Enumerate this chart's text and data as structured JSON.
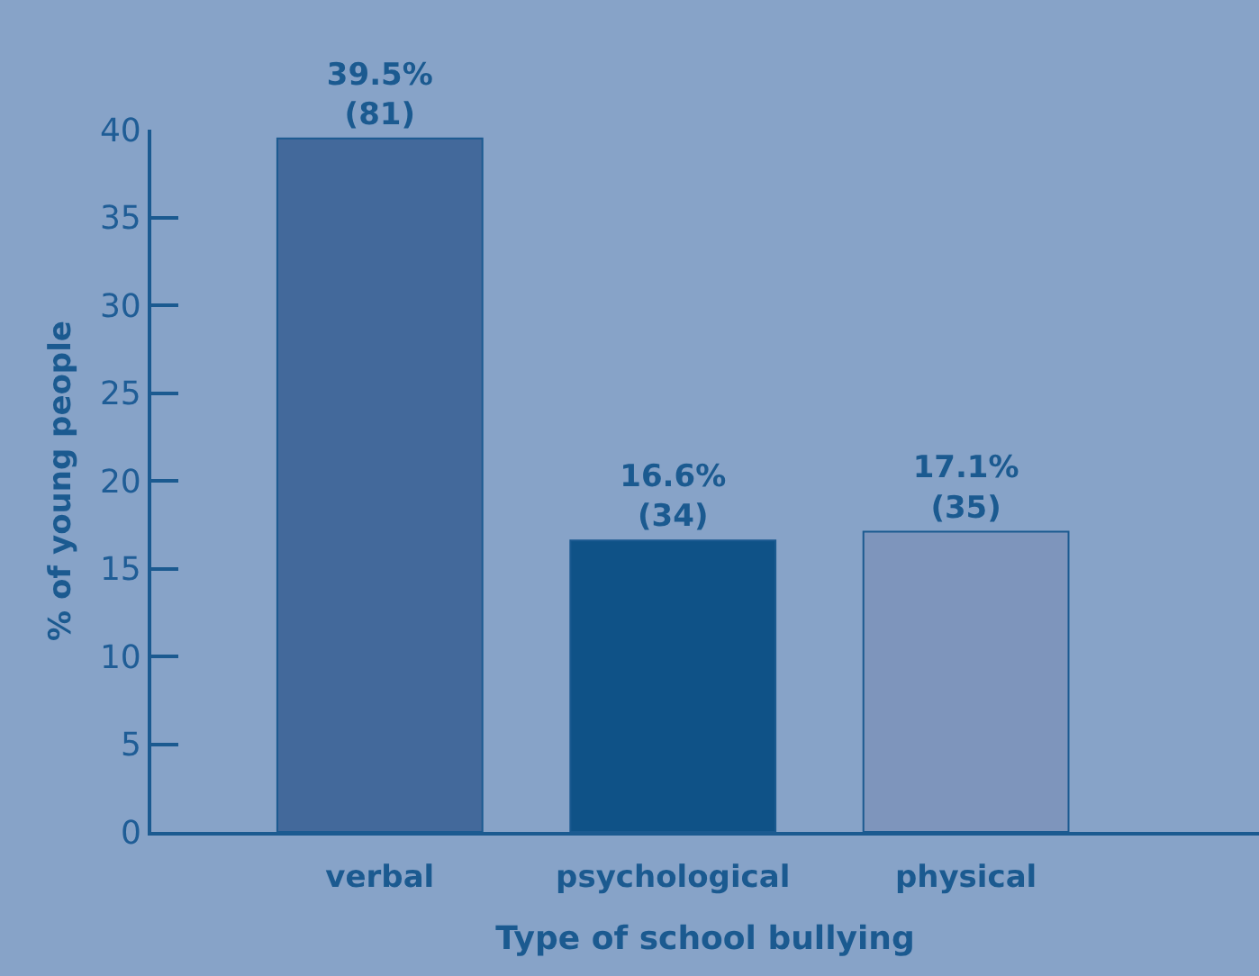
{
  "chart_data": {
    "type": "bar",
    "xlabel": "Type of school bullying",
    "ylabel": "% of young people",
    "categories": [
      "verbal",
      "psychological",
      "physical"
    ],
    "values": [
      39.5,
      16.6,
      17.1
    ],
    "colors": [
      "#43699b",
      "#0f5287",
      "#7e95bc"
    ],
    "value_labels": [
      "39.5%\n(81)",
      "16.6%\n(34)",
      "17.1%\n(35)"
    ],
    "ylim": [
      0,
      40
    ],
    "yticks": [
      0,
      5,
      10,
      15,
      20,
      25,
      30,
      35,
      40
    ]
  }
}
